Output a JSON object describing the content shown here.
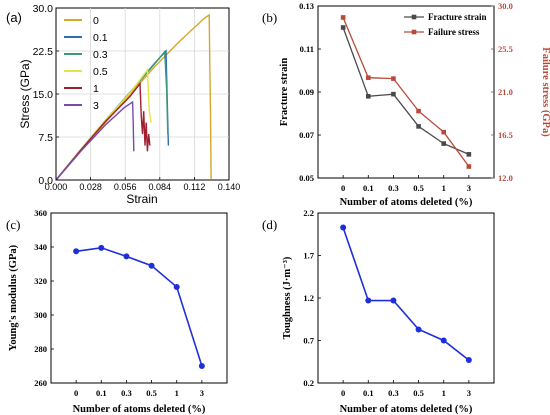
{
  "chart_data": [
    {
      "type": "line",
      "panel": "(a)",
      "xlabel": "Strain",
      "ylabel": "Stress (GPa)",
      "xlim": [
        0,
        0.14
      ],
      "ylim": [
        0,
        30
      ],
      "xticks": [
        "0.000",
        "0.028",
        "0.056",
        "0.084",
        "0.112",
        "0.140"
      ],
      "yticks": [
        "0.0",
        "7.5",
        "15.0",
        "22.5",
        "30.0"
      ],
      "legend_position": "top-left",
      "series": [
        {
          "name": "0",
          "color": "#d4a82a",
          "points": [
            [
              0,
              0
            ],
            [
              0.02,
              5.0
            ],
            [
              0.04,
              10.0
            ],
            [
              0.06,
              15.0
            ],
            [
              0.08,
              19.8
            ],
            [
              0.1,
              24.2
            ],
            [
              0.12,
              28.2
            ],
            [
              0.124,
              28.8
            ],
            [
              0.1245,
              20
            ],
            [
              0.125,
              12
            ],
            [
              0.1255,
              0.2
            ]
          ]
        },
        {
          "name": "0.1",
          "color": "#2f6fb0",
          "points": [
            [
              0,
              0
            ],
            [
              0.02,
              5.3
            ],
            [
              0.04,
              10.4
            ],
            [
              0.06,
              15.3
            ],
            [
              0.08,
              20.4
            ],
            [
              0.089,
              22.5
            ],
            [
              0.0905,
              10
            ],
            [
              0.091,
              6
            ]
          ]
        },
        {
          "name": "0.3",
          "color": "#3a9a78",
          "points": [
            [
              0,
              0
            ],
            [
              0.02,
              5.3
            ],
            [
              0.04,
              10.4
            ],
            [
              0.06,
              15.3
            ],
            [
              0.08,
              20.3
            ],
            [
              0.088,
              22.4
            ],
            [
              0.0895,
              16
            ],
            [
              0.0905,
              8
            ]
          ]
        },
        {
          "name": "0.5",
          "color": "#e3e44a",
          "points": [
            [
              0,
              0
            ],
            [
              0.02,
              5.3
            ],
            [
              0.04,
              10.4
            ],
            [
              0.06,
              15.2
            ],
            [
              0.074,
              19.2
            ],
            [
              0.0755,
              12
            ],
            [
              0.077,
              10
            ]
          ]
        },
        {
          "name": "1",
          "color": "#a02030",
          "points": [
            [
              0,
              0
            ],
            [
              0.02,
              5.2
            ],
            [
              0.04,
              10.2
            ],
            [
              0.06,
              14.6
            ],
            [
              0.068,
              16.8
            ],
            [
              0.069,
              11
            ],
            [
              0.07,
              8
            ],
            [
              0.071,
              12
            ],
            [
              0.072,
              6
            ],
            [
              0.073,
              10
            ],
            [
              0.074,
              5
            ],
            [
              0.075,
              8
            ],
            [
              0.076,
              6
            ]
          ]
        },
        {
          "name": "3",
          "color": "#7a4aaa",
          "points": [
            [
              0,
              0
            ],
            [
              0.02,
              5.0
            ],
            [
              0.04,
              9.6
            ],
            [
              0.055,
              12.6
            ],
            [
              0.062,
              13.6
            ],
            [
              0.0625,
              10
            ],
            [
              0.063,
              5
            ]
          ]
        }
      ]
    },
    {
      "type": "line",
      "panel": "(b)",
      "xlabel": "Number of atoms deleted (%)",
      "ylabel": "Fracture strain",
      "y2label": "Failure stress (GPa)",
      "categories": [
        "0",
        "0.1",
        "0.3",
        "0.5",
        "1",
        "3"
      ],
      "ylim": [
        0.05,
        0.13
      ],
      "yticks": [
        "0.05",
        "0.07",
        "0.09",
        "0.11",
        "0.13"
      ],
      "y2lim": [
        12.0,
        30.0
      ],
      "y2ticks": [
        "12.0",
        "16.5",
        "21.0",
        "25.5",
        "30.0"
      ],
      "legend_position": "top-right",
      "series": [
        {
          "name": "Fracture strain",
          "axis": "left",
          "color": "#4a4a4a",
          "marker": "square",
          "values": [
            0.12,
            0.088,
            0.089,
            0.074,
            0.066,
            0.061
          ]
        },
        {
          "name": "Failure stress",
          "axis": "right",
          "color": "#b84a3a",
          "marker": "square",
          "values": [
            28.8,
            22.5,
            22.4,
            19.0,
            16.8,
            13.2
          ]
        }
      ]
    },
    {
      "type": "line",
      "panel": "(c)",
      "xlabel": "Number of atoms deleted (%)",
      "ylabel": "Young's modulus (GPa)",
      "categories": [
        "0",
        "0.1",
        "0.3",
        "0.5",
        "1",
        "3"
      ],
      "ylim": [
        260,
        360
      ],
      "yticks": [
        "260",
        "280",
        "300",
        "320",
        "340",
        "360"
      ],
      "series": [
        {
          "name": "",
          "color": "#1e2fd8",
          "marker": "circle",
          "values": [
            337.5,
            339.5,
            334.5,
            329.0,
            316.5,
            270.0
          ]
        }
      ]
    },
    {
      "type": "line",
      "panel": "(d)",
      "xlabel": "Number of atoms deleted (%)",
      "ylabel": "Toughness (J·m⁻³)",
      "categories": [
        "0",
        "0.1",
        "0.3",
        "0.5",
        "1",
        "3"
      ],
      "ylim": [
        0.2,
        2.2
      ],
      "yticks": [
        "0.2",
        "0.7",
        "1.2",
        "1.7",
        "2.2"
      ],
      "series": [
        {
          "name": "",
          "color": "#1e2fd8",
          "marker": "circle",
          "values": [
            2.03,
            1.17,
            1.17,
            0.83,
            0.7,
            0.47
          ]
        }
      ]
    }
  ]
}
